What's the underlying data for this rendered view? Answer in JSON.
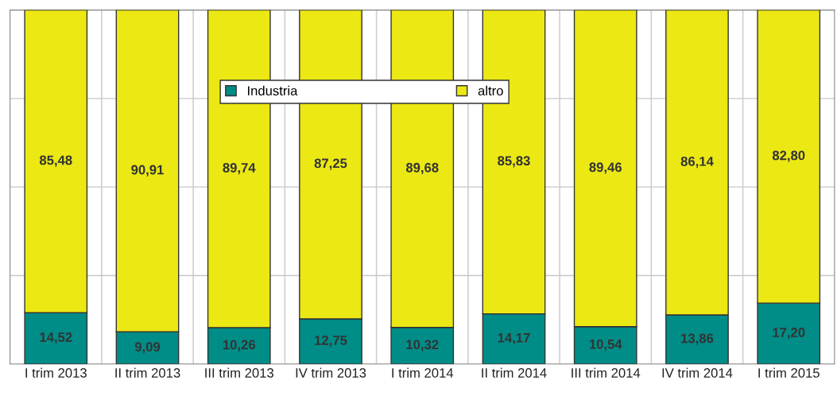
{
  "chart_data": {
    "type": "bar",
    "stacked": true,
    "categories": [
      "I trim 2013",
      "II trim 2013",
      "III trim 2013",
      "IV trim 2013",
      "I trim 2014",
      "II trim 2014",
      "III trim 2014",
      "IV trim 2014",
      "I trim 2015"
    ],
    "series": [
      {
        "name": "Industria",
        "color": "#008c87",
        "values": [
          14.52,
          9.09,
          10.26,
          12.75,
          10.32,
          14.17,
          10.54,
          13.86,
          17.2
        ],
        "value_labels": [
          "14,52",
          "9,09",
          "10,26",
          "12,75",
          "10,32",
          "14,17",
          "10,54",
          "13,86",
          "17,20"
        ]
      },
      {
        "name": "altro",
        "color": "#ebe814",
        "values": [
          85.48,
          90.91,
          89.74,
          87.25,
          89.68,
          85.83,
          89.46,
          86.14,
          82.8
        ],
        "value_labels": [
          "85,48",
          "90,91",
          "89,74",
          "87,25",
          "89,68",
          "85,83",
          "89,46",
          "86,14",
          "82,80"
        ]
      }
    ],
    "ylim": [
      0,
      100
    ],
    "yticks": [
      {
        "value": 0,
        "label": null
      },
      {
        "value": 25,
        "label": null
      },
      {
        "value": 50,
        "label": null
      },
      {
        "value": 75,
        "label": null
      },
      {
        "value": 100,
        "label": null
      }
    ],
    "grid": "y",
    "legend": "top",
    "tick_labels": "x"
  }
}
